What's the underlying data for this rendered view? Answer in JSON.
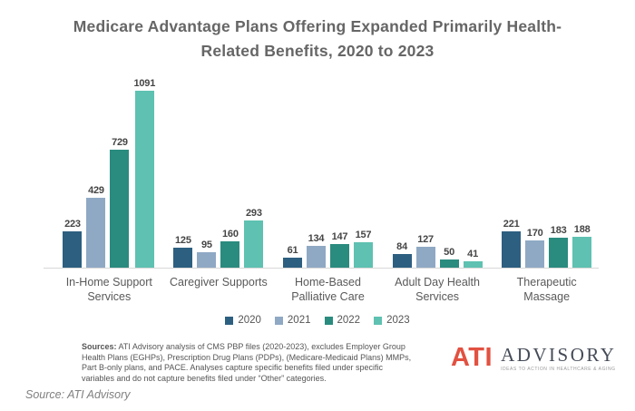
{
  "title": {
    "line1": "Medicare Advantage Plans Offering Expanded Primarily Health-",
    "line2": "Related Benefits, 2020 to 2023"
  },
  "chart_data": {
    "type": "bar",
    "title": "Medicare Advantage Plans Offering Expanded Primarily Health-Related Benefits, 2020 to 2023",
    "categories": [
      "In-Home Support Services",
      "Caregiver Supports",
      "Home-Based Palliative Care",
      "Adult Day Health Services",
      "Therapeutic Massage"
    ],
    "category_lines": [
      [
        "In-Home Support",
        "Services"
      ],
      [
        "Caregiver Supports"
      ],
      [
        "Home-Based",
        "Palliative Care"
      ],
      [
        "Adult Day Health",
        "Services"
      ],
      [
        "Therapeutic",
        "Massage"
      ]
    ],
    "series": [
      {
        "name": "2020",
        "color": "#2D5F80",
        "values": [
          223,
          125,
          61,
          84,
          221
        ]
      },
      {
        "name": "2021",
        "color": "#8FA9C4",
        "values": [
          429,
          95,
          134,
          127,
          170
        ]
      },
      {
        "name": "2022",
        "color": "#2A8B7F",
        "values": [
          729,
          160,
          147,
          50,
          183
        ]
      },
      {
        "name": "2023",
        "color": "#5EC1B1",
        "values": [
          1091,
          293,
          157,
          41,
          188
        ]
      }
    ],
    "ylim": [
      0,
      1091
    ],
    "grid": false,
    "legend_position": "bottom",
    "xlabel": "",
    "ylabel": ""
  },
  "sources": {
    "label": "Sources:",
    "line1": "ATI Advisory analysis of CMS PBP files (2020-2023), excludes Employer Group",
    "line2": "Health Plans (EGHPs), Prescription Drug Plans (PDPs), (Medicare-Medicaid Plans) MMPs,",
    "line3": "Part B-only plans, and PACE. Analyses capture specific benefits filed under specific",
    "line4": "variables and do not capture benefits filed under “Other” categories."
  },
  "logo": {
    "brand": "ATI",
    "brand_color": "#E25141",
    "name": "ADVISORY",
    "tagline": "IDEAS TO ACTION IN HEALTHCARE & AGING"
  },
  "footer": {
    "text": "Source: ATI Advisory"
  }
}
